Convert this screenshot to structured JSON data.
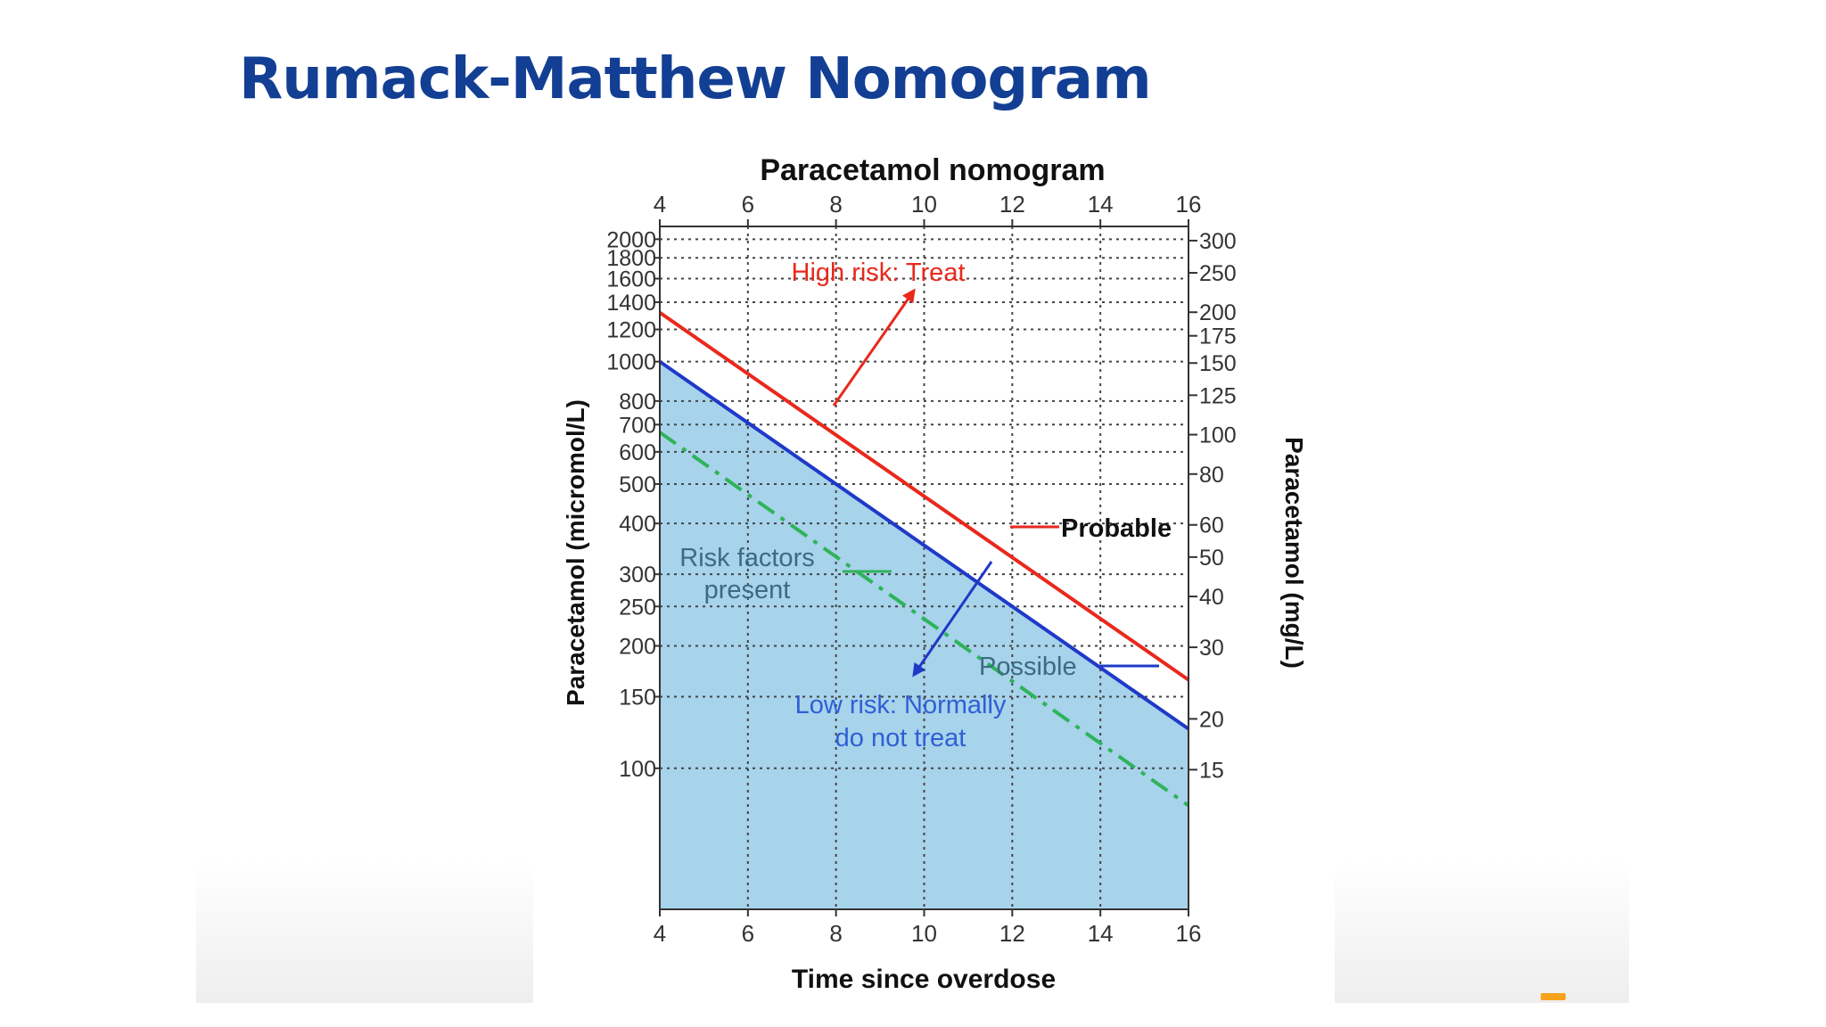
{
  "slide": {
    "title": "Rumack-Matthew Nomogram",
    "accent_color": "#f7a21b"
  },
  "chart_data": {
    "type": "line",
    "title": "Paracetamol nomogram",
    "xlabel": "Time since overdose",
    "ylabel_left": "Paracetamol (micromol/L)",
    "ylabel_right": "Paracetamol (mg/L)",
    "x_range": [
      4,
      16
    ],
    "x_ticks": [
      4,
      6,
      8,
      10,
      12,
      14,
      16
    ],
    "y_scale": "log",
    "y_range_left": [
      45,
      2150
    ],
    "y_ticks_left": [
      2000,
      1800,
      1600,
      1400,
      1200,
      1000,
      800,
      700,
      600,
      500,
      400,
      300,
      250,
      200,
      150,
      100
    ],
    "y_ticks_right": [
      300,
      250,
      200,
      175,
      150,
      125,
      100,
      80,
      60,
      50,
      40,
      30,
      20,
      15
    ],
    "mg_per_micromol": 0.1512,
    "grid": true,
    "series": [
      {
        "name": "Probable",
        "color": "#e8291c",
        "style": "solid",
        "x": [
          4,
          16
        ],
        "y": [
          1320,
          165
        ]
      },
      {
        "name": "Possible",
        "color": "#1f39c8",
        "style": "solid",
        "x": [
          4,
          16
        ],
        "y": [
          1000,
          125
        ]
      },
      {
        "name": "Risk factors present",
        "color": "#2fb35a",
        "style": "dashdot",
        "x": [
          4,
          16
        ],
        "y": [
          670,
          81
        ]
      }
    ],
    "shaded_region": {
      "below_series": "Possible",
      "color": "#a7d3eb"
    },
    "annotations": [
      {
        "text": "High risk: Treat",
        "color": "#e8291c"
      },
      {
        "text": "Probable",
        "color": "#111111"
      },
      {
        "text": "Risk factors",
        "color": "#3c6b84"
      },
      {
        "text": "present",
        "color": "#3c6b84"
      },
      {
        "text": "Possible",
        "color": "#3c6b84"
      },
      {
        "text": "Low risk: Normally",
        "color": "#2f5fd6"
      },
      {
        "text": "do not treat",
        "color": "#2f5fd6"
      }
    ]
  }
}
